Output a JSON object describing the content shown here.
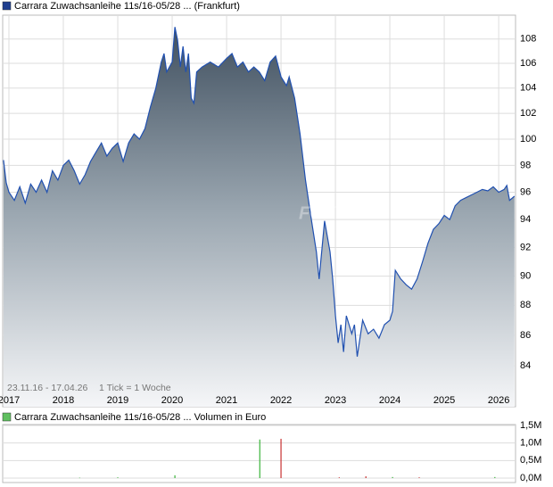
{
  "chart_data": [
    {
      "type": "line",
      "title": "Carrara Zuwachsanleihe 11s/16-05/28 ... (Frankfurt)",
      "legend_color": "#1f3f8f",
      "annotations": [
        "23.11.16 - 17.04.26",
        "1 Tick = 1 Woche"
      ],
      "watermark": "FCK",
      "log_scale": true,
      "grid": true,
      "xlim": [
        2016.885,
        2026.31
      ],
      "xticks": [
        2017,
        2018,
        2019,
        2020,
        2021,
        2022,
        2023,
        2024,
        2025,
        2026
      ],
      "ylim": [
        81.4,
        110
      ],
      "yticks": [
        84,
        86,
        88,
        90,
        92,
        94,
        96,
        98,
        100,
        102,
        104,
        106,
        108
      ],
      "series": [
        {
          "color": "#2050b0",
          "x": [
            2016.9,
            2016.95,
            2017.0,
            2017.1,
            2017.2,
            2017.3,
            2017.4,
            2017.5,
            2017.6,
            2017.7,
            2017.8,
            2017.9,
            2018.0,
            2018.1,
            2018.2,
            2018.3,
            2018.4,
            2018.5,
            2018.6,
            2018.7,
            2018.8,
            2018.9,
            2019.0,
            2019.1,
            2019.2,
            2019.3,
            2019.4,
            2019.5,
            2019.6,
            2019.7,
            2019.8,
            2019.85,
            2019.9,
            2020.0,
            2020.05,
            2020.1,
            2020.15,
            2020.2,
            2020.25,
            2020.3,
            2020.35,
            2020.4,
            2020.45,
            2020.55,
            2020.7,
            2020.85,
            2021.0,
            2021.1,
            2021.2,
            2021.3,
            2021.4,
            2021.5,
            2021.6,
            2021.7,
            2021.8,
            2021.9,
            2022.0,
            2022.1,
            2022.15,
            2022.25,
            2022.35,
            2022.45,
            2022.55,
            2022.65,
            2022.7,
            2022.8,
            2022.9,
            2022.95,
            2023.0,
            2023.05,
            2023.1,
            2023.15,
            2023.2,
            2023.3,
            2023.35,
            2023.4,
            2023.5,
            2023.6,
            2023.7,
            2023.8,
            2023.9,
            2024.0,
            2024.05,
            2024.1,
            2024.2,
            2024.3,
            2024.4,
            2024.5,
            2024.6,
            2024.7,
            2024.8,
            2024.9,
            2025.0,
            2025.1,
            2025.2,
            2025.3,
            2025.4,
            2025.5,
            2025.6,
            2025.7,
            2025.8,
            2025.9,
            2026.0,
            2026.1,
            2026.15,
            2026.2,
            2026.29
          ],
          "values": [
            98.4,
            96.7,
            96,
            95.4,
            96.4,
            95.2,
            96.6,
            96,
            96.9,
            96,
            97.6,
            96.9,
            98,
            98.4,
            97.6,
            96.6,
            97.3,
            98.3,
            99,
            99.7,
            98.7,
            99.3,
            99.7,
            98.3,
            99.7,
            100.4,
            100,
            100.8,
            102.5,
            104,
            106.1,
            106.8,
            105.3,
            106.1,
            109,
            107.9,
            105.7,
            107.4,
            105.3,
            106.8,
            103.2,
            102.8,
            105.3,
            105.7,
            106.1,
            105.7,
            106.4,
            106.8,
            105.7,
            106.1,
            105.3,
            105.7,
            105.3,
            104.6,
            106.1,
            106.6,
            104.9,
            104.2,
            104.9,
            103.2,
            100.4,
            96.9,
            94.2,
            91.7,
            89.8,
            93.9,
            91.7,
            89.8,
            87.3,
            85.5,
            86.7,
            84.9,
            87.3,
            86.1,
            86.7,
            84.6,
            87,
            86.1,
            86.4,
            85.8,
            86.7,
            87,
            87.6,
            90.4,
            89.8,
            89.4,
            89.1,
            89.8,
            91,
            92.3,
            93.3,
            93.7,
            94.3,
            94,
            95,
            95.4,
            95.6,
            95.8,
            96,
            96.2,
            96.1,
            96.4,
            96,
            96.2,
            96.5,
            95.4,
            95.7
          ]
        }
      ]
    },
    {
      "type": "bar",
      "title": "Carrara Zuwachsanleihe 11s/16-05/28 ... Volumen in Euro",
      "legend_color": "#5fbf5f",
      "grid": true,
      "xlim": [
        2016.885,
        2026.31
      ],
      "ylim": [
        0,
        1500000
      ],
      "yticks": [
        {
          "value": 0,
          "label": "0,0M"
        },
        {
          "value": 500000,
          "label": "0,5M"
        },
        {
          "value": 1000000,
          "label": "1,0M"
        },
        {
          "value": 1500000,
          "label": "1,5M"
        }
      ],
      "x": [
        2018.3,
        2019.0,
        2020.05,
        2021.61,
        2022.0,
        2023.07,
        2023.56,
        2024.05,
        2024.54,
        2025.93
      ],
      "values": [
        10000,
        20000,
        80000,
        1100000,
        1120000,
        20000,
        50000,
        30000,
        20000,
        30000
      ],
      "colors": [
        "#3cb43c",
        "#3cb43c",
        "#3cb43c",
        "#3cb43c",
        "#c83232",
        "#c83232",
        "#c83232",
        "#3cb43c",
        "#c83232",
        "#3cb43c"
      ]
    }
  ]
}
